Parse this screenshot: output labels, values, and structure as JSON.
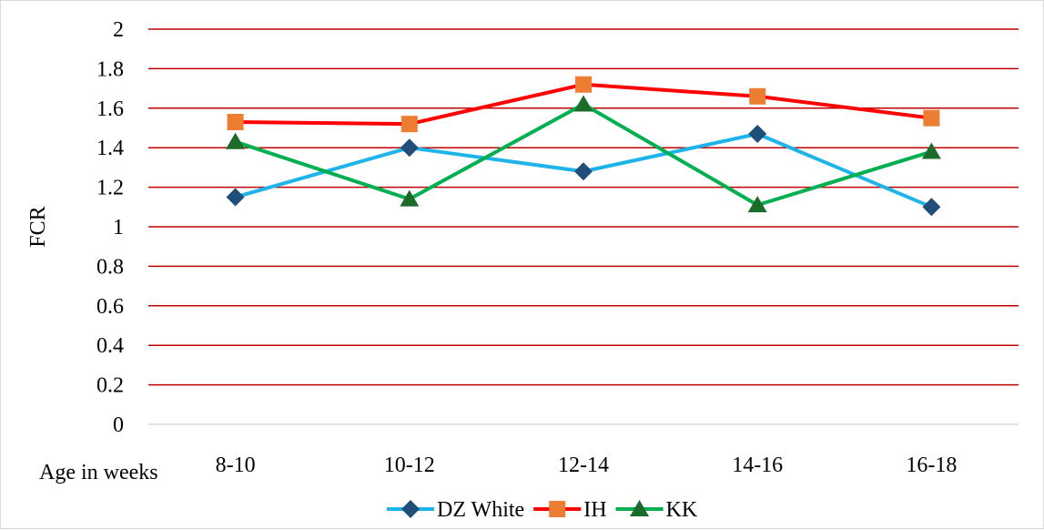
{
  "chart_data": {
    "type": "line",
    "title": "",
    "xlabel": "Age in weeks",
    "ylabel": "FCR",
    "ylim": [
      0,
      2
    ],
    "yticks": [
      "0",
      "0.2",
      "0.4",
      "0.6",
      "0.8",
      "1",
      "1.2",
      "1.4",
      "1.6",
      "1.8",
      "2"
    ],
    "categories": [
      "8-10",
      "10-12",
      "12-14",
      "14-16",
      "16-18"
    ],
    "grid": true,
    "legend_position": "bottom",
    "gridline_color": "#c00000",
    "series": [
      {
        "name": "DZ White",
        "values": [
          1.15,
          1.4,
          1.28,
          1.47,
          1.1
        ],
        "color": "#1eb4ea",
        "marker_color": "#1f4e79",
        "marker": "diamond"
      },
      {
        "name": "IH",
        "values": [
          1.53,
          1.52,
          1.72,
          1.66,
          1.55
        ],
        "color": "#ff0000",
        "marker_color": "#ed7d31",
        "marker": "square"
      },
      {
        "name": "KK",
        "values": [
          1.43,
          1.14,
          1.62,
          1.11,
          1.38
        ],
        "color": "#00b050",
        "marker_color": "#1b6b2a",
        "marker": "triangle"
      }
    ]
  }
}
